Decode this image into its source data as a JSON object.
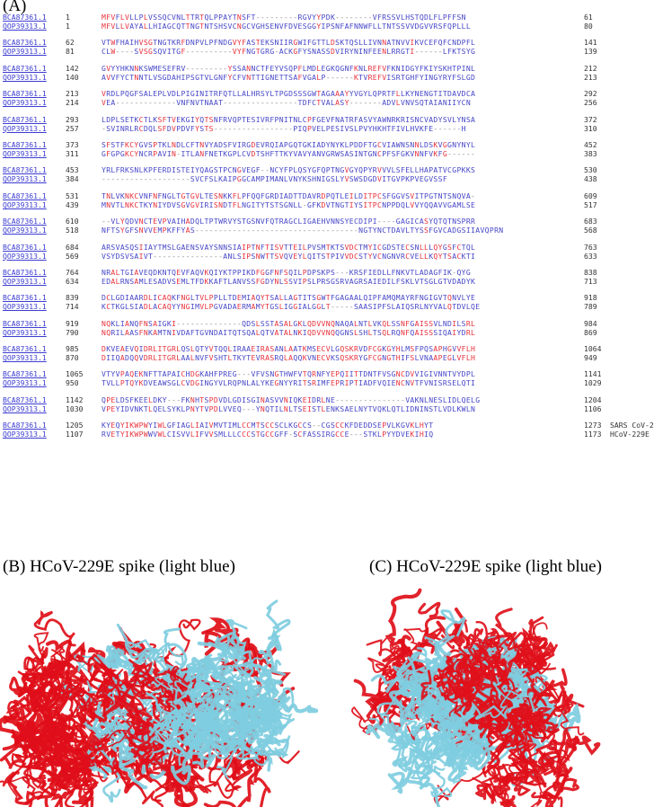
{
  "panel_a": {
    "label": "(A)",
    "alignment": [
      {
        "acc1": "BCA87361.1",
        "s1": "1",
        "seq1": "MFVFLVLLPLVSSQCVNLTTRTQLPPAYTNSFT---------RGVYYPDK--------VFRSSVLHSTQDLFLPFFSN",
        "e1": "61",
        "acc2": "QOP39313.1",
        "s2": "1",
        "seq2": "MFVLLVAYALLHIAGCQTTNGTNTSHSVCNGCVGHSENVFDVESGGYIPSNFAFNNWFLLTNTSSVVDGVVRSFQPLLL",
        "e2": "80"
      },
      {
        "acc1": "BCA87361.1",
        "s1": "62",
        "seq1": "VTWFHAIHVSGTNGTKRFDNPVLPFNDGVYFASTEKSNIIRGWIFGTTLDSKTQSLLIVNNATNVVIKVCEFQFCNDPFL",
        "e1": "141",
        "acc2": "QOP39313.1",
        "s2": "81",
        "seq2": "CLW----SVSGSQVITGF----------VYFNGTGRG-ACKGFYSNASSDVIRYNINFEENLRRGTI------LFKTSYG",
        "e2": "139"
      },
      {
        "acc1": "BCA87361.1",
        "s1": "142",
        "seq1": "GVYYHKNNKSWMESEFRV---------YSSANNCTFEYVSQPFLMDLEGKQGNFKNLREFVFKNIDGYFKIYSKHTPINL",
        "e1": "212",
        "acc2": "QOP39313.1",
        "s2": "140",
        "seq2": "AVVFYCTNNTLVSGDAHIPSGTVLGNFYCFVNTTIGNETTSAFVGALP------KTVREFVISRTGHFYINGYRYFSLGD",
        "e2": "213"
      },
      {
        "acc1": "BCA87361.1",
        "s1": "213",
        "seq1": "VRDLPQGFSALEPLVDLPIGINITRFQTLLALHRSYLTPGDSSSGWTAGAAAYYVGYLQPRTFLLKYNENGTITDAVDCA",
        "e1": "292",
        "acc2": "QOP39313.1",
        "s2": "214",
        "seq2": "VEA-------------VNFNVTNAAT----------------TDFCTVALASY-------ADVLVNVSQTAIANIIYCN",
        "e2": "256"
      },
      {
        "acc1": "BCA87361.1",
        "s1": "293",
        "seq1": "LDPLSETKCTLKSFTVEKGIYQTSNFRVQPTESIVRFPNITNLCPFGEVFNATRFASVYAWNRKRISNCVADYSVLYNSA",
        "e1": "372",
        "acc2": "QOP39313.1",
        "s2": "257",
        "seq2": "-SVINRLRCDQLSFDVPDVFYSTS-----------------PIQPVELPESIVSLPVYHKHTFIVLHVKFE------H",
        "e2": "310"
      },
      {
        "acc1": "BCA87361.1",
        "s1": "373",
        "seq1": "SFSTFKCYGVSPTKLNDLCFTNVYADSFVIRGDEVRQIAPGQTGKIADYNYKLPDDFTGCVIAWNSNNLDSKVGGNYNYL",
        "e1": "452",
        "acc2": "QOP39313.1",
        "s2": "311",
        "seq2": "GFGPGKCYNCRPAVIN-ITLANFNETKGPLCVDTSHFTTKYVAVYANVGRWSASINTGNCPFSFGKVNNFVKFG------",
        "e2": "383"
      },
      {
        "acc1": "BCA87361.1",
        "s1": "453",
        "seq1": "YRLFRKSNLKPFERDISTEIYQAGSTPCNGVEGF--NCYFPLQSYGFQPTNGVGYQPYRVVVLSFELLHAPATVCGPKKS",
        "e1": "530",
        "acc2": "QOP39313.1",
        "s2": "384",
        "seq2": "-------------------SVCFSLKAIPGGCAMPIMANLVNYKSHNIGSLYVSWSDGDVITGVPKPVEGVSSF",
        "e2": "438"
      },
      {
        "acc1": "BCA87361.1",
        "s1": "531",
        "seq1": "TNLVKNKCVNFNFNGLTGTGVLTESNKKFLPFQQFGRDIADTTDAVRDPQTLEILDITPCSFGGVSVITPGTNTSNQVA-",
        "e1": "609",
        "acc2": "QOP39313.1",
        "s2": "439",
        "seq2": "MNVTLNKCTKYNIYDVSGVGVIRISNDTFLNGITYTSTSGNLL-GFKDVTNGTIYSITPCNPPDQLVVYQQAVVGAMLSE",
        "e2": "517"
      },
      {
        "acc1": "BCA87361.1",
        "s1": "610",
        "seq1": "--VLYQDVNCTEVPVAIHADQLTPTWRVYSTGSNVFQTRAGCLIGAEHVNNSYECDIPI----GAGICASYQTQTNSPRR",
        "e1": "683",
        "acc2": "QOP39313.1",
        "s2": "518",
        "seq2": "NFTSYGFSNVVEMPKFFYAS-----------------------------------NGTYNCTDAVLTYSSFGVCADGSIIAVQPRN",
        "e2": "568"
      },
      {
        "acc1": "BCA87361.1",
        "s1": "684",
        "seq1": "ARSVASQSIIAYTMSLGAENSVAYSNNSIAIPTNFTISVTTEILPVSMTKTSVDCTMYICGDSTECSNLLLQYGSFCTQL",
        "e1": "763",
        "acc2": "QOP39313.1",
        "s2": "569",
        "seq2": "VSYDSVSAIVT---------------ANLSIPSNWTTSVQVEYLQITSTPIVVDCSTYVCNGNVRCVELLKQYTSACKTI",
        "e2": "633"
      },
      {
        "acc1": "BCA87361.1",
        "s1": "764",
        "seq1": "NRALTGIAVEQDKNTQEVFAQVKQIYKTPPIKDFGGFNFSQILPDPSKPS---KRSFIEDLLFNKVTLADAGFIK-QYG",
        "e1": "838",
        "acc2": "QOP39313.1",
        "s2": "634",
        "seq2": "EDALRNSAMLESADVSEMLTFDKKAFTLANVSSFGDYNLSSVIPSLPRSGSRVAGRSAIEDILFSKLVTSGLGTVDADYK",
        "e2": "713"
      },
      {
        "acc1": "BCA87361.1",
        "s1": "839",
        "seq1": "DCLGDIAARDLICAQKFNGLTVLPPLLTDEMIAQYTSALLAGTITSGWTFGAGAALQIPFAMQMAYRFNGIGVTQNVLYE",
        "e1": "918",
        "acc2": "QOP39313.1",
        "s2": "714",
        "seq2": "KCTKGLSIADLACAQYYNGIMVLPGVADAERMAMYTGSLIGGIALGGLT-----SAASIPFSLAIQSRLNYVALQTDVLQE",
        "e2": "789"
      },
      {
        "acc1": "BCA87361.1",
        "s1": "919",
        "seq1": "NQKLIANQFNSAIGKI--------------QDSLSSTASALGKLQDVVNQNAQALNTLVKQLSSNFGAISSVLNDILSRL",
        "e1": "984",
        "acc2": "QOP39313.1",
        "s2": "790",
        "seq2": "NQRILAASFNKAMTNIVDAFTGVNDAITQTSQALQTVATALNKIQDVVNQQGNSLSHLTSQLRQNFQAISSSIQAIYDRL",
        "e2": "869"
      },
      {
        "acc1": "BCA87361.1",
        "s1": "985",
        "seq1": "DKVEAEVQIDRLITGRLQSLQTYVTQQLIRAAEIRASANLAATKMSECVLGQSKRVDFCGKGYHLMSFPQSAPHGVVFLH",
        "e1": "1064",
        "acc2": "QOP39313.1",
        "s2": "870",
        "seq2": "DIIQADQQVDRLITGRLAALNVFVSHTLTKYTEVRASRQLAQQKVNECVKSQSKRYGFCGNGTHIFSLVNAAPEGLVFLH",
        "e2": "949"
      },
      {
        "acc1": "BCA87361.1",
        "s1": "1065",
        "seq1": "VTYVPAQEKNFTTAPAICHDGKAHFPREG---VFVSNGTHWFVTQRNFYEPQIITTDNTFVSGNCDVVIGIVNNTVYDPL",
        "e1": "1141",
        "acc2": "QOP39313.1",
        "s2": "950",
        "seq2": "TVLLPTQYKDVEAWSGLCVDGINGYVLRQPNLALYKEGNYYRITSRIMFEPRIPTIADFVQIENCNVTFVNISRSELQTI",
        "e2": "1029"
      },
      {
        "acc1": "BCA87361.1",
        "s1": "1142",
        "seq1": "QPELDSFKEELDKY---FKNHTSPDVDLGDISGINASVVNIQKEIDRLNE---------------VAKNLNESLIDLQELG",
        "e1": "1204",
        "acc2": "QOP39313.1",
        "s2": "1030",
        "seq2": "VPEYIDVNKTLQELSYKLPNYTVPDLVVEQ---YNQTILNLTSEISTLENKSAELNYTVQKLQTLIDNINSTLVDLKWLN",
        "e2": "1106"
      },
      {
        "acc1": "BCA87361.1",
        "s1": "1205",
        "seq1": "KYEQYIKWPWYIWLGFIAGLIAIVMVTIMLCCMTSCCSCLKGCCS--CGSCCKFDEDDSEPVLKGVKLHYT",
        "e1": "1273",
        "t1": "SARS CoV-2",
        "acc2": "QOP39313.1",
        "s2": "1107",
        "seq2": "RVETYIKWPWWVWLCISVVLIFVVSMLLLCCCSTGCCGFF-SCFASSIRGCCE---STKLPYYDVEKIHIQ",
        "e2": "1173",
        "t2": "HCoV-229E"
      }
    ]
  },
  "panel_b": {
    "label": "(B) HCoV-229E spike (light blue)"
  },
  "panel_c": {
    "label": "(C) HCoV-229E spike (light blue)"
  },
  "colors": {
    "identity": "#e8323c",
    "default_seq": "#4747c8",
    "accession": "#3d3dd2",
    "gap": "#8c8c8c",
    "sars_ribbon": "#e0101a",
    "hcov_ribbon": "#7fcde0"
  }
}
